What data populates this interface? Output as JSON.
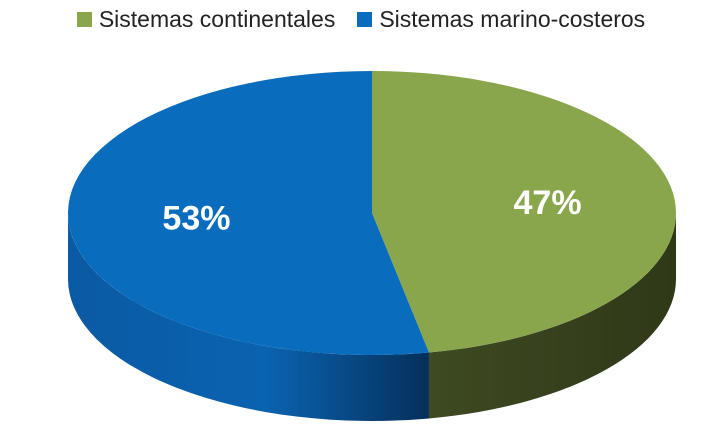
{
  "chart_data": {
    "type": "pie",
    "style": "3d",
    "legend_position": "top",
    "title": "",
    "slices": [
      {
        "label": "Sistemas continentales",
        "value": 47,
        "value_label": "47%",
        "color": "#8aa64d",
        "side_color": "#3a4620"
      },
      {
        "label": "Sistemas marino-costeros",
        "value": 53,
        "value_label": "53%",
        "color": "#0a6cbd",
        "side_color": "#094a86"
      }
    ]
  }
}
